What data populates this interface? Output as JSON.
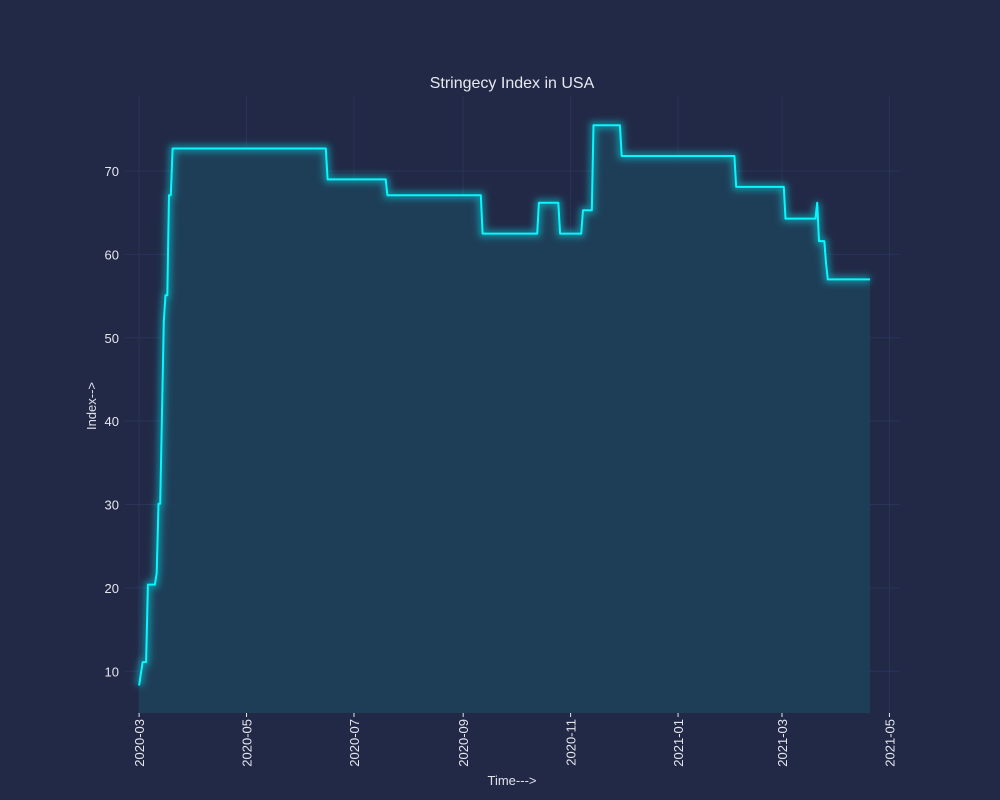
{
  "chart_data": {
    "type": "area",
    "title": "Stringecy Index in USA",
    "xlabel": "Time--->",
    "ylabel": "Index-->",
    "series": [
      {
        "x": [
          "2020-03-01",
          "2020-03-03",
          "2020-03-05",
          "2020-03-06",
          "2020-03-08",
          "2020-03-09",
          "2020-03-10",
          "2020-03-11",
          "2020-03-12",
          "2020-03-13",
          "2020-03-14",
          "2020-03-15",
          "2020-03-16",
          "2020-03-17",
          "2020-03-18",
          "2020-03-19",
          "2020-03-20",
          "2020-03-21",
          "2020-03-22",
          "2020-03-24",
          "2020-06-15",
          "2020-06-16",
          "2020-07-19",
          "2020-07-20",
          "2020-09-11",
          "2020-09-12",
          "2020-10-13",
          "2020-10-14",
          "2020-10-25",
          "2020-10-26",
          "2020-11-07",
          "2020-11-08",
          "2020-11-13",
          "2020-11-14",
          "2020-11-29",
          "2020-11-30",
          "2021-02-02",
          "2021-02-03",
          "2021-03-02",
          "2021-03-03",
          "2021-03-20",
          "2021-03-21",
          "2021-03-22",
          "2021-03-25",
          "2021-03-26",
          "2021-03-27",
          "2021-04-20"
        ],
        "values": [
          8.3,
          11.1,
          11.1,
          20.4,
          20.4,
          20.4,
          20.4,
          21.8,
          30.1,
          30.1,
          41,
          52,
          55.1,
          55.1,
          67.1,
          67.1,
          72.7,
          72.7,
          72.7,
          72.7,
          72.7,
          69,
          69,
          67.1,
          67.1,
          62.5,
          62.5,
          66.2,
          66.2,
          62.5,
          62.5,
          65.3,
          65.3,
          75.5,
          75.5,
          71.8,
          71.8,
          68.1,
          68.1,
          64.3,
          64.3,
          66.2,
          61.6,
          61.6,
          59,
          57,
          57
        ]
      }
    ],
    "xlim": [
      "2020-02-22",
      "2021-05-07"
    ],
    "ylim": [
      5,
      79
    ],
    "x_ticks": [
      "2020-03",
      "2020-05",
      "2020-07",
      "2020-09",
      "2020-11",
      "2021-01",
      "2021-03",
      "2021-05"
    ],
    "y_ticks": [
      10,
      20,
      30,
      40,
      50,
      60,
      70
    ],
    "grid": true,
    "line_color": "#08F7FE",
    "fill_color": "#1f3f5a",
    "background": "#212946",
    "grid_color": "#2A3459"
  }
}
